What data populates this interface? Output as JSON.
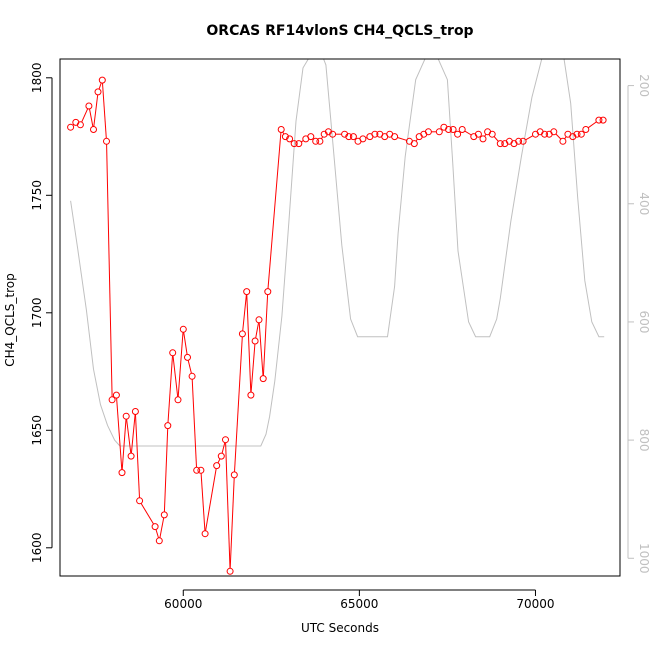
{
  "chart_data": {
    "type": "line",
    "title": "ORCAS RF14vlonS CH4_QCLS_trop",
    "xlabel": "UTC Seconds",
    "ylabel": "CH4_QCLS_trop",
    "xlim": [
      56500,
      72400
    ],
    "ylim": [
      1588,
      1808
    ],
    "y2lim": [
      1030,
      155
    ],
    "y2_reversed": true,
    "grid": false,
    "x_ticks": [
      60000,
      65000,
      70000
    ],
    "y_ticks": [
      1600,
      1650,
      1700,
      1750,
      1800
    ],
    "y2_ticks": [
      200,
      400,
      600,
      800,
      1000
    ],
    "series": [
      {
        "name": "",
        "color": "#ff0000",
        "marker": "open-circle",
        "x": [
          56800,
          56950,
          57080,
          57320,
          57450,
          57580,
          57700,
          57820,
          57980,
          58100,
          58260,
          58380,
          58520,
          58640,
          58760,
          59200,
          59320,
          59460,
          59560,
          59700,
          59850,
          60000,
          60120,
          60250,
          60380,
          60500,
          60620,
          60950,
          61080,
          61200,
          61330,
          61450,
          61680,
          61800,
          61920,
          62040,
          62150,
          62270,
          62400,
          62780,
          62900,
          63020,
          63150,
          63280,
          63480,
          63620,
          63760,
          63880,
          64000,
          64120,
          64240,
          64580,
          64700,
          64830,
          64960,
          65100,
          65300,
          65440,
          65580,
          65720,
          65860,
          66000,
          66420,
          66560,
          66700,
          66830,
          66960,
          67270,
          67400,
          67530,
          67660,
          67790,
          67920,
          68250,
          68380,
          68510,
          68640,
          68770,
          69000,
          69130,
          69260,
          69390,
          69520,
          69650,
          70000,
          70130,
          70260,
          70390,
          70520,
          70780,
          70920,
          71060,
          71180,
          71300,
          71430,
          71800,
          71920
        ],
        "values": [
          1779,
          1781,
          1780,
          1788,
          1778,
          1794,
          1799,
          1773,
          1663,
          1665,
          1632,
          1656,
          1639,
          1658,
          1620,
          1609,
          1603,
          1614,
          1652,
          1683,
          1663,
          1693,
          1681,
          1673,
          1633,
          1633,
          1606,
          1635,
          1639,
          1646,
          1590,
          1631,
          1691,
          1709,
          1665,
          1688,
          1697,
          1672,
          1709,
          1778,
          1775,
          1774,
          1772,
          1772,
          1774,
          1775,
          1773,
          1773,
          1776,
          1777,
          1776,
          1776,
          1775,
          1775,
          1773,
          1774,
          1775,
          1776,
          1776,
          1775,
          1776,
          1775,
          1773,
          1772,
          1775,
          1776,
          1777,
          1777,
          1779,
          1778,
          1778,
          1776,
          1778,
          1775,
          1776,
          1774,
          1777,
          1776,
          1772,
          1772,
          1773,
          1772,
          1773,
          1773,
          1776,
          1777,
          1776,
          1776,
          1777,
          1773,
          1776,
          1775,
          1776,
          1776,
          1778,
          1782,
          1782
        ]
      },
      {
        "name": "",
        "color": "#c0c0c0",
        "axis": "right",
        "x": [
          56800,
          57000,
          57250,
          57450,
          57650,
          57850,
          58050,
          58200,
          58300,
          58500,
          58700,
          59000,
          59500,
          60000,
          60500,
          61000,
          61500,
          62000,
          62200,
          62350,
          62450,
          62600,
          62800,
          63000,
          63200,
          63400,
          63600,
          63800,
          63950,
          64050,
          64250,
          64500,
          64750,
          64950,
          65100,
          65300,
          65600,
          65800,
          66000,
          66100,
          66300,
          66600,
          66900,
          67200,
          67500,
          67650,
          67800,
          68100,
          68300,
          68500,
          68700,
          68900,
          69000,
          69300,
          69600,
          69900,
          70200,
          70400,
          70800,
          71000,
          71200,
          71400,
          71600,
          71800,
          71950
        ],
        "values": [
          395,
          475,
          580,
          680,
          740,
          775,
          800,
          810,
          810,
          810,
          810,
          810,
          810,
          810,
          810,
          810,
          810,
          810,
          810,
          790,
          760,
          700,
          590,
          430,
          260,
          170,
          150,
          150,
          150,
          165,
          300,
          470,
          595,
          625,
          625,
          625,
          625,
          625,
          540,
          450,
          320,
          190,
          150,
          150,
          190,
          330,
          480,
          600,
          625,
          625,
          625,
          595,
          560,
          430,
          320,
          220,
          150,
          150,
          150,
          230,
          390,
          530,
          600,
          625,
          625
        ]
      }
    ]
  }
}
